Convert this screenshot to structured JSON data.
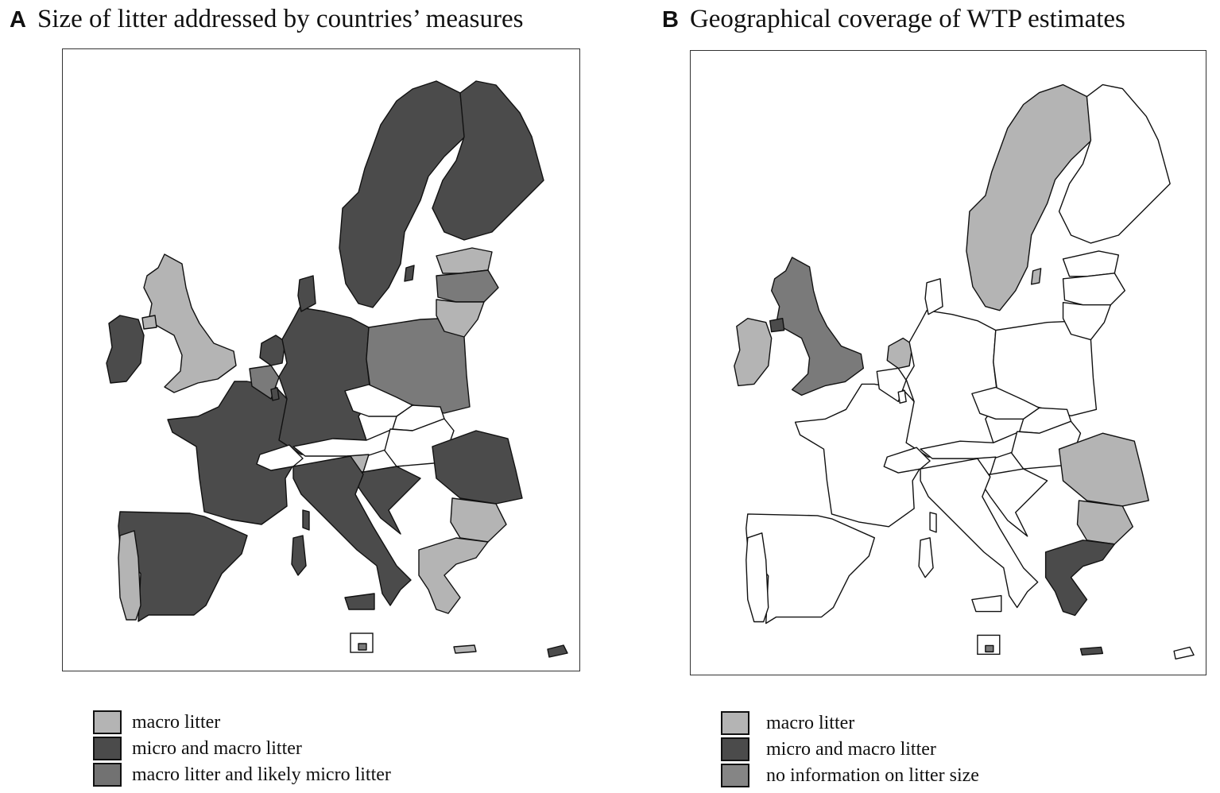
{
  "colors": {
    "light": "#b4b4b4",
    "dark": "#4b4b4b",
    "medium": "#727272",
    "none": "#ffffff",
    "border": "#111111"
  },
  "panel_a": {
    "letter": "A",
    "title": "Size of litter addressed by countries’ measures",
    "legend": [
      {
        "label": "macro litter",
        "color": "#b4b4b4"
      },
      {
        "label": "micro and macro litter",
        "color": "#4b4b4b"
      },
      {
        "label": "macro litter and likely micro litter",
        "color": "#727272"
      }
    ]
  },
  "panel_b": {
    "letter": "B",
    "title": "Geographical coverage of WTP estimates",
    "legend": [
      {
        "label": "macro litter",
        "color": "#b4b4b4"
      },
      {
        "label": "micro and macro litter",
        "color": "#4b4b4b"
      },
      {
        "label": "no information on litter size",
        "color": "#858585"
      }
    ]
  }
}
